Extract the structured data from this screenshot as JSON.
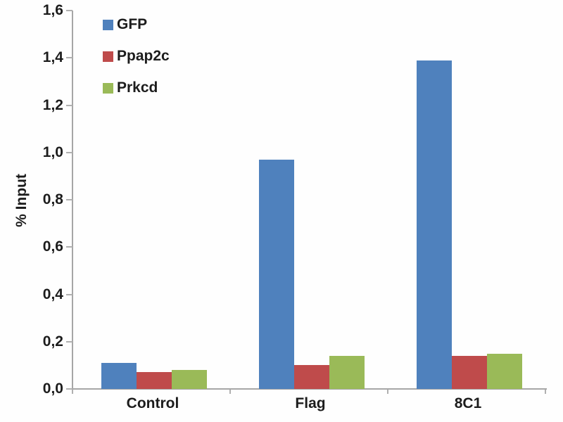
{
  "chart_data": {
    "type": "bar",
    "title": "",
    "xlabel": "",
    "ylabel": "% Input",
    "categories": [
      "Control",
      "Flag",
      "8C1"
    ],
    "series": [
      {
        "name": "GFP",
        "color": "#4f81bd",
        "values": [
          0.11,
          0.97,
          1.39
        ]
      },
      {
        "name": "Ppap2c",
        "color": "#bf4b4b",
        "values": [
          0.07,
          0.1,
          0.14
        ]
      },
      {
        "name": "Prkcd",
        "color": "#9aba58",
        "values": [
          0.08,
          0.14,
          0.15
        ]
      }
    ],
    "ylim": [
      0,
      1.6
    ],
    "ytick_step": 0.2,
    "ytick_labels": [
      "0,0",
      "0,2",
      "0,4",
      "0,6",
      "0,8",
      "1,0",
      "1,2",
      "1,4",
      "1,6"
    ],
    "decimal_separator": ",",
    "grid": false,
    "legend_position": "upper-left-inside",
    "axis_color": "#a6a6a6",
    "text_color": "#1c1c1c"
  }
}
